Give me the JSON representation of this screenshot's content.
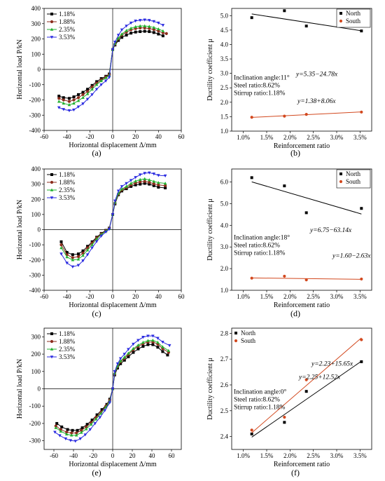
{
  "chart_data": [
    {
      "id": "a",
      "type": "line",
      "caption": "(a)",
      "xlabel": "Horizontal displacement Δ/mm",
      "ylabel": "Horizontal load P/kN",
      "xlim": [
        -60,
        60
      ],
      "ylim": [
        -400,
        400
      ],
      "xticks": [
        -60,
        -40,
        -20,
        0,
        20,
        40,
        60
      ],
      "yticks": [
        -400,
        -300,
        -200,
        -100,
        0,
        100,
        200,
        300,
        400
      ],
      "legend_position": "top-left",
      "series": [
        {
          "name": "1.18%",
          "color": "#000000",
          "marker": "square",
          "x": [
            -47,
            -43,
            -38,
            -34,
            -30,
            -26,
            -22,
            -18,
            -14,
            -10,
            -6,
            -3,
            0,
            2,
            5,
            8,
            12,
            16,
            20,
            24,
            28,
            32,
            36,
            40,
            44
          ],
          "y": [
            -175,
            -185,
            -190,
            -180,
            -165,
            -150,
            -130,
            -105,
            -80,
            -60,
            -45,
            -30,
            130,
            160,
            190,
            210,
            225,
            238,
            245,
            248,
            250,
            248,
            242,
            232,
            220
          ]
        },
        {
          "name": "1.88%",
          "color": "#8b2c1c",
          "marker": "circle",
          "x": [
            -47,
            -43,
            -38,
            -34,
            -30,
            -26,
            -22,
            -18,
            -14,
            -10,
            -6,
            -3,
            0,
            2,
            5,
            8,
            12,
            16,
            20,
            24,
            28,
            32,
            36,
            40,
            44,
            47
          ],
          "y": [
            -190,
            -200,
            -210,
            -200,
            -185,
            -165,
            -145,
            -115,
            -90,
            -68,
            -50,
            -35,
            130,
            165,
            200,
            225,
            245,
            260,
            268,
            272,
            272,
            268,
            262,
            252,
            240,
            235
          ]
        },
        {
          "name": "2.35%",
          "color": "#22b030",
          "marker": "triangle-up",
          "x": [
            -47,
            -43,
            -38,
            -34,
            -30,
            -26,
            -22,
            -18,
            -14,
            -10,
            -6,
            -3,
            0,
            2,
            5,
            8,
            12,
            16,
            20,
            24,
            28,
            32,
            36,
            40,
            44
          ],
          "y": [
            -210,
            -222,
            -232,
            -222,
            -205,
            -185,
            -160,
            -130,
            -100,
            -75,
            -55,
            -38,
            130,
            170,
            205,
            232,
            255,
            270,
            280,
            285,
            285,
            282,
            275,
            265,
            252
          ]
        },
        {
          "name": "3.53%",
          "color": "#2b2be0",
          "marker": "triangle-down",
          "x": [
            -47,
            -43,
            -38,
            -34,
            -30,
            -26,
            -22,
            -18,
            -14,
            -10,
            -6,
            -3,
            0,
            2,
            5,
            8,
            12,
            16,
            20,
            24,
            28,
            32,
            36,
            40,
            44
          ],
          "y": [
            -250,
            -262,
            -270,
            -265,
            -245,
            -225,
            -195,
            -165,
            -130,
            -100,
            -75,
            -52,
            130,
            180,
            225,
            260,
            285,
            305,
            318,
            322,
            325,
            322,
            315,
            305,
            290
          ]
        }
      ]
    },
    {
      "id": "b",
      "type": "scatter",
      "caption": "(b)",
      "xlabel": "Reinforcement ratio",
      "ylabel": "Ductility coefficient μ",
      "xlim": [
        0.75,
        3.75
      ],
      "ylim": [
        1.0,
        5.25
      ],
      "xticks": [
        1.0,
        1.5,
        2.0,
        2.5,
        3.0,
        3.5
      ],
      "xticklabels": [
        "1.0%",
        "1.5%",
        "2.0%",
        "2.5%",
        "3.0%",
        "3.5%"
      ],
      "yticks": [
        1.0,
        1.5,
        2.0,
        2.5,
        3.0,
        3.5,
        4.0,
        4.5,
        5.0
      ],
      "yticklabels": [
        "1.0",
        "1.5",
        "2.0",
        "2.5",
        "3.0",
        "3.5",
        "4.0",
        "4.5",
        "5.0"
      ],
      "legend_position": "top-right",
      "series": [
        {
          "name": "North",
          "color": "#000000",
          "marker": "square",
          "x": [
            1.18,
            1.88,
            2.35,
            3.53
          ],
          "y": [
            4.93,
            5.17,
            4.64,
            4.47
          ],
          "fit": {
            "intercept": 5.35,
            "slope": -24.78,
            "label": "y=5.35−24.78x"
          }
        },
        {
          "name": "South",
          "color": "#d2481e",
          "marker": "circle",
          "x": [
            1.18,
            1.88,
            2.35,
            3.53
          ],
          "y": [
            1.48,
            1.52,
            1.58,
            1.66
          ],
          "fit": {
            "intercept": 1.38,
            "slope": 8.06,
            "label": "y=1.38+8.06x"
          }
        }
      ],
      "annotations": [
        "Inclination angle:11°",
        "Steel ratio:8.62%",
        "Stirrup ratio:1.18%"
      ]
    },
    {
      "id": "c",
      "type": "line",
      "caption": "(c)",
      "xlabel": "Horizontal displacement Δ/mm",
      "ylabel": "Horizontal load P/kN",
      "xlim": [
        -60,
        60
      ],
      "ylim": [
        -400,
        400
      ],
      "xticks": [
        -60,
        -40,
        -20,
        0,
        20,
        40,
        60
      ],
      "yticks": [
        -400,
        -300,
        -200,
        -100,
        0,
        100,
        200,
        300,
        400
      ],
      "legend_position": "top-left",
      "series": [
        {
          "name": "1.18%",
          "color": "#000000",
          "marker": "square",
          "x": [
            -45,
            -40,
            -35,
            -30,
            -26,
            -22,
            -18,
            -14,
            -10,
            -6,
            -3,
            0,
            2,
            5,
            8,
            12,
            16,
            20,
            24,
            28,
            32,
            36,
            40,
            46
          ],
          "y": [
            -80,
            -150,
            -165,
            -160,
            -140,
            -110,
            -80,
            -50,
            -25,
            -5,
            10,
            100,
            170,
            230,
            255,
            270,
            285,
            295,
            300,
            305,
            300,
            290,
            280,
            275
          ]
        },
        {
          "name": "1.88%",
          "color": "#8b2c1c",
          "marker": "circle",
          "x": [
            -45,
            -40,
            -35,
            -30,
            -26,
            -22,
            -18,
            -14,
            -10,
            -6,
            -3,
            0,
            2,
            5,
            8,
            12,
            16,
            20,
            24,
            28,
            32,
            36,
            40,
            46
          ],
          "y": [
            -100,
            -165,
            -185,
            -178,
            -155,
            -120,
            -88,
            -55,
            -28,
            -8,
            8,
            100,
            175,
            235,
            262,
            278,
            295,
            308,
            315,
            318,
            312,
            302,
            295,
            290
          ]
        },
        {
          "name": "2.35%",
          "color": "#22b030",
          "marker": "triangle-up",
          "x": [
            -45,
            -40,
            -35,
            -30,
            -26,
            -22,
            -18,
            -14,
            -10,
            -6,
            -3,
            0,
            2,
            5,
            8,
            12,
            16,
            20,
            24,
            28,
            32,
            36,
            40,
            46
          ],
          "y": [
            -120,
            -180,
            -200,
            -195,
            -170,
            -135,
            -100,
            -62,
            -32,
            -10,
            6,
            100,
            180,
            240,
            268,
            285,
            305,
            320,
            330,
            335,
            328,
            318,
            310,
            305
          ]
        },
        {
          "name": "3.53%",
          "color": "#2b2be0",
          "marker": "triangle-down",
          "x": [
            -45,
            -40,
            -35,
            -30,
            -26,
            -22,
            -18,
            -14,
            -10,
            -6,
            -3,
            0,
            2,
            5,
            8,
            12,
            16,
            20,
            24,
            28,
            32,
            36,
            40,
            46
          ],
          "y": [
            -160,
            -220,
            -245,
            -235,
            -205,
            -165,
            -120,
            -78,
            -42,
            -15,
            3,
            100,
            190,
            255,
            285,
            305,
            325,
            345,
            362,
            372,
            375,
            368,
            358,
            355
          ]
        }
      ]
    },
    {
      "id": "d",
      "type": "scatter",
      "caption": "(d)",
      "xlabel": "Reinforcement ratio",
      "ylabel": "Ductility coefficient μ",
      "xlim": [
        0.75,
        3.75
      ],
      "ylim": [
        1.0,
        6.6
      ],
      "xticks": [
        1.0,
        1.5,
        2.0,
        2.5,
        3.0,
        3.5
      ],
      "xticklabels": [
        "1.0%",
        "1.5%",
        "2.0%",
        "2.5%",
        "3.0%",
        "3.5%"
      ],
      "yticks": [
        1.0,
        2.0,
        3.0,
        4.0,
        5.0,
        6.0
      ],
      "yticklabels": [
        "1.0",
        "2.0",
        "3.0",
        "4.0",
        "5.0",
        "6.0"
      ],
      "legend_position": "top-right",
      "series": [
        {
          "name": "North",
          "color": "#000000",
          "marker": "square",
          "x": [
            1.18,
            1.88,
            2.35,
            3.53
          ],
          "y": [
            6.2,
            5.82,
            4.58,
            4.78
          ],
          "fit": {
            "intercept": 6.75,
            "slope": -63.14,
            "label": "y=6.75−63.14x"
          }
        },
        {
          "name": "South",
          "color": "#d2481e",
          "marker": "circle",
          "x": [
            1.18,
            1.88,
            2.35,
            3.53
          ],
          "y": [
            1.56,
            1.65,
            1.48,
            1.52
          ],
          "fit": {
            "intercept": 1.6,
            "slope": -2.63,
            "label": "y=1.60−2.63x"
          }
        }
      ],
      "annotations": [
        "Inclination angle:18°",
        "Steel ratio:8.62%",
        "Stirrup ratio:1.18%"
      ]
    },
    {
      "id": "e",
      "type": "line",
      "caption": "(e)",
      "xlabel": "Horizontal displacement Δ/mm",
      "ylabel": "Horizontal load P/kN",
      "xlim": [
        -70,
        70
      ],
      "ylim": [
        -350,
        350
      ],
      "xticks": [
        -60,
        -40,
        -20,
        0,
        20,
        40,
        60
      ],
      "yticks": [
        -300,
        -200,
        -100,
        0,
        100,
        200,
        300
      ],
      "legend_position": "top-left",
      "series": [
        {
          "name": "1.18%",
          "color": "#000000",
          "marker": "square",
          "x": [
            -57,
            -52,
            -46,
            -41,
            -36,
            -31,
            -26,
            -21,
            -16,
            -11,
            -6,
            -3,
            0,
            2,
            5,
            8,
            12,
            16,
            21,
            26,
            31,
            36,
            41,
            46,
            51,
            56
          ],
          "y": [
            -200,
            -220,
            -235,
            -240,
            -240,
            -225,
            -205,
            -180,
            -150,
            -120,
            -90,
            -60,
            0,
            80,
            120,
            145,
            165,
            185,
            210,
            230,
            245,
            255,
            255,
            240,
            215,
            195
          ]
        },
        {
          "name": "1.88%",
          "color": "#8b2c1c",
          "marker": "circle",
          "x": [
            -58,
            -53,
            -47,
            -42,
            -37,
            -32,
            -27,
            -22,
            -17,
            -12,
            -7,
            -3,
            0,
            2,
            5,
            8,
            12,
            16,
            21,
            26,
            31,
            36,
            41,
            46,
            51,
            57
          ],
          "y": [
            -215,
            -235,
            -250,
            -255,
            -255,
            -240,
            -220,
            -195,
            -165,
            -135,
            -100,
            -65,
            0,
            85,
            128,
            155,
            175,
            198,
            225,
            245,
            260,
            270,
            270,
            258,
            232,
            210
          ]
        },
        {
          "name": "2.35%",
          "color": "#22b030",
          "marker": "triangle-up",
          "x": [
            -58,
            -53,
            -47,
            -42,
            -37,
            -32,
            -27,
            -22,
            -17,
            -12,
            -7,
            -3,
            0,
            2,
            5,
            8,
            12,
            16,
            21,
            26,
            31,
            36,
            41,
            46,
            51,
            57
          ],
          "y": [
            -225,
            -245,
            -262,
            -268,
            -268,
            -252,
            -232,
            -205,
            -175,
            -142,
            -106,
            -70,
            0,
            90,
            132,
            160,
            182,
            205,
            232,
            252,
            268,
            278,
            280,
            268,
            242,
            220
          ]
        },
        {
          "name": "3.53%",
          "color": "#2b2be0",
          "marker": "triangle-down",
          "x": [
            -59,
            -54,
            -48,
            -43,
            -38,
            -33,
            -28,
            -23,
            -18,
            -13,
            -8,
            -3,
            0,
            2,
            5,
            8,
            12,
            16,
            21,
            26,
            31,
            36,
            41,
            46,
            51,
            58
          ],
          "y": [
            -250,
            -270,
            -288,
            -298,
            -302,
            -288,
            -265,
            -235,
            -200,
            -165,
            -125,
            -80,
            0,
            100,
            145,
            175,
            200,
            228,
            258,
            280,
            298,
            305,
            305,
            292,
            270,
            250
          ]
        }
      ]
    },
    {
      "id": "f",
      "type": "scatter",
      "caption": "(f)",
      "xlabel": "Reinforcement ratio",
      "ylabel": "Ductility coefficient μ",
      "xlim": [
        0.75,
        3.75
      ],
      "ylim": [
        2.35,
        2.82
      ],
      "xticks": [
        1.0,
        1.5,
        2.0,
        2.5,
        3.0,
        3.5
      ],
      "xticklabels": [
        "1.0%",
        "1.5%",
        "2.0%",
        "2.5%",
        "3.0%",
        "3.5%"
      ],
      "yticks": [
        2.4,
        2.5,
        2.6,
        2.7,
        2.8
      ],
      "yticklabels": [
        "2.4",
        "2.5",
        "2.6",
        "2.7",
        "2.8"
      ],
      "legend_position": "top-left",
      "series": [
        {
          "name": "North",
          "color": "#000000",
          "marker": "square",
          "x": [
            1.18,
            1.88,
            2.35,
            3.53
          ],
          "y": [
            2.41,
            2.455,
            2.575,
            2.69
          ],
          "fit": {
            "intercept": 2.25,
            "slope": 12.52,
            "label": "y=2.25+12.52x"
          }
        },
        {
          "name": "South",
          "color": "#d2481e",
          "marker": "circle",
          "x": [
            1.18,
            1.88,
            2.35,
            3.53
          ],
          "y": [
            2.425,
            2.475,
            2.62,
            2.775
          ],
          "fit": {
            "intercept": 2.23,
            "slope": 15.65,
            "label": "y=2.23+15.65x"
          }
        }
      ],
      "annotations": [
        "Inclination angle:0°",
        "Steel ratio:8.62%",
        "Stirrup ratio:1.18%"
      ]
    }
  ]
}
